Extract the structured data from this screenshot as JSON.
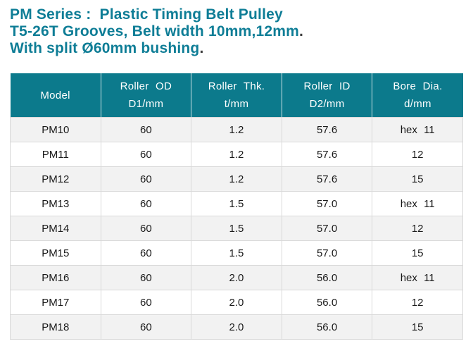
{
  "theme": {
    "page_bg": "#ffffff",
    "title_color": "#0e7d96",
    "title_period_color": "#3c3c3c",
    "header_bg": "#0c7a8c",
    "header_text": "#ffffff",
    "header_divider": "#cfe2e5",
    "row_bg": "#ffffff",
    "row_alt_bg": "#f2f2f2",
    "cell_border": "#d9d9d9",
    "cell_text": "#1a1a1a"
  },
  "title": {
    "lines": [
      {
        "text": "PM Series :  Plastic Timing Belt Pulley",
        "period": ""
      },
      {
        "text": "T5-26T Grooves, Belt width 10mm,12mm",
        "period": "."
      },
      {
        "text": "With split Ø60mm bushing",
        "period": "."
      }
    ]
  },
  "table": {
    "columns": [
      {
        "line1": "Model",
        "line2": ""
      },
      {
        "line1": "Roller OD",
        "line2": "D1/mm"
      },
      {
        "line1": "Roller Thk.",
        "line2": "t/mm"
      },
      {
        "line1": "Roller ID",
        "line2": "D2/mm"
      },
      {
        "line1": "Bore Dia.",
        "line2": "d/mm"
      }
    ],
    "rows": [
      [
        "PM10",
        "60",
        "1.2",
        "57.6",
        "hex 11"
      ],
      [
        "PM11",
        "60",
        "1.2",
        "57.6",
        "12"
      ],
      [
        "PM12",
        "60",
        "1.2",
        "57.6",
        "15"
      ],
      [
        "PM13",
        "60",
        "1.5",
        "57.0",
        "hex 11"
      ],
      [
        "PM14",
        "60",
        "1.5",
        "57.0",
        "12"
      ],
      [
        "PM15",
        "60",
        "1.5",
        "57.0",
        "15"
      ],
      [
        "PM16",
        "60",
        "2.0",
        "56.0",
        "hex 11"
      ],
      [
        "PM17",
        "60",
        "2.0",
        "56.0",
        "12"
      ],
      [
        "PM18",
        "60",
        "2.0",
        "56.0",
        "15"
      ]
    ]
  }
}
